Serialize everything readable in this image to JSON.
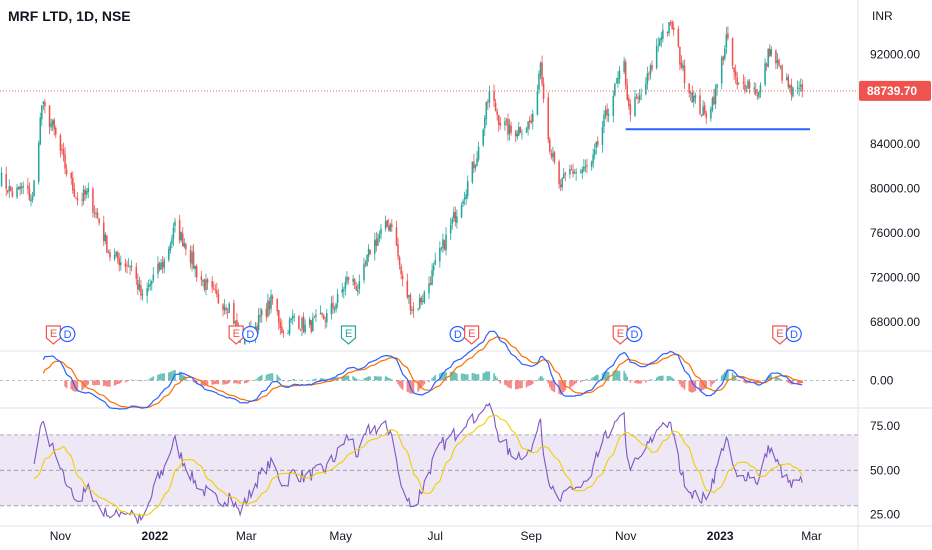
{
  "header": {
    "title": "MRF LTD, 1D, NSE"
  },
  "colors": {
    "up": "#26a69a",
    "down": "#ef5350",
    "macd": "#2962ff",
    "signal": "#ff6d00",
    "rsi": "#7e57c2",
    "rsi_ma": "#f0d000",
    "rsi_band": "#ede7f6",
    "support": "#2962ff",
    "price_line": "#ef5350"
  },
  "chart_data": {
    "type": "candlestick",
    "currency_label": "INR",
    "ylim": [
      65500,
      96000
    ],
    "y_ticks": [
      {
        "value": 92000,
        "label": "92000.00"
      },
      {
        "value": 88000,
        "label": "88000.00"
      },
      {
        "value": 84000,
        "label": "84000.00"
      },
      {
        "value": 80000,
        "label": "80000.00"
      },
      {
        "value": 76000,
        "label": "76000.00"
      },
      {
        "value": 72000,
        "label": "72000.00"
      },
      {
        "value": 68000,
        "label": "68000.00"
      }
    ],
    "x_ticks": [
      {
        "date": "2021-11-01",
        "label": "Nov",
        "bold": false
      },
      {
        "date": "2022-01-01",
        "label": "2022",
        "bold": true
      },
      {
        "date": "2022-03-01",
        "label": "Mar",
        "bold": false
      },
      {
        "date": "2022-05-01",
        "label": "May",
        "bold": false
      },
      {
        "date": "2022-07-01",
        "label": "Jul",
        "bold": false
      },
      {
        "date": "2022-09-01",
        "label": "Sep",
        "bold": false
      },
      {
        "date": "2022-11-01",
        "label": "Nov",
        "bold": false
      },
      {
        "date": "2023-01-01",
        "label": "2023",
        "bold": true
      },
      {
        "date": "2023-03-01",
        "label": "Mar",
        "bold": false
      }
    ],
    "x_range": [
      "2021-09-23",
      "2023-03-31"
    ],
    "last_price": {
      "value": 88739.7,
      "label": "88739.70"
    },
    "support_line": {
      "start": "2022-11-01",
      "end": "2023-02-28",
      "value": 85300
    },
    "price_path": [
      [
        "2021-09-23",
        81000
      ],
      [
        "2021-10-01",
        79500
      ],
      [
        "2021-10-08",
        80000
      ],
      [
        "2021-10-14",
        79000
      ],
      [
        "2021-10-20",
        87500
      ],
      [
        "2021-10-27",
        85500
      ],
      [
        "2021-11-05",
        81500
      ],
      [
        "2021-11-12",
        79000
      ],
      [
        "2021-11-19",
        79500
      ],
      [
        "2021-11-26",
        77000
      ],
      [
        "2021-12-03",
        74000
      ],
      [
        "2021-12-10",
        73500
      ],
      [
        "2021-12-17",
        73000
      ],
      [
        "2021-12-24",
        70000
      ],
      [
        "2021-12-31",
        72000
      ],
      [
        "2022-01-07",
        73500
      ],
      [
        "2022-01-14",
        76500
      ],
      [
        "2022-01-21",
        75000
      ],
      [
        "2022-01-28",
        72500
      ],
      [
        "2022-02-04",
        71000
      ],
      [
        "2022-02-11",
        70000
      ],
      [
        "2022-02-18",
        69500
      ],
      [
        "2022-02-25",
        66500
      ],
      [
        "2022-03-04",
        67000
      ],
      [
        "2022-03-11",
        68500
      ],
      [
        "2022-03-18",
        70000
      ],
      [
        "2022-03-25",
        67000
      ],
      [
        "2022-04-01",
        68500
      ],
      [
        "2022-04-08",
        67500
      ],
      [
        "2022-04-15",
        68000
      ],
      [
        "2022-04-22",
        68500
      ],
      [
        "2022-04-29",
        70000
      ],
      [
        "2022-05-06",
        72000
      ],
      [
        "2022-05-13",
        71000
      ],
      [
        "2022-05-20",
        74500
      ],
      [
        "2022-05-27",
        76000
      ],
      [
        "2022-06-03",
        77000
      ],
      [
        "2022-06-10",
        71500
      ],
      [
        "2022-06-17",
        69000
      ],
      [
        "2022-06-24",
        70500
      ],
      [
        "2022-07-01",
        73000
      ],
      [
        "2022-07-08",
        75500
      ],
      [
        "2022-07-15",
        78000
      ],
      [
        "2022-07-22",
        80500
      ],
      [
        "2022-07-29",
        83500
      ],
      [
        "2022-08-05",
        88500
      ],
      [
        "2022-08-12",
        86000
      ],
      [
        "2022-08-19",
        85000
      ],
      [
        "2022-08-26",
        85500
      ],
      [
        "2022-09-02",
        86000
      ],
      [
        "2022-09-07",
        91500
      ],
      [
        "2022-09-12",
        84500
      ],
      [
        "2022-09-19",
        80000
      ],
      [
        "2022-09-26",
        81500
      ],
      [
        "2022-10-03",
        81500
      ],
      [
        "2022-10-10",
        82000
      ],
      [
        "2022-10-17",
        85500
      ],
      [
        "2022-10-24",
        88500
      ],
      [
        "2022-10-31",
        91000
      ],
      [
        "2022-11-03",
        87000
      ],
      [
        "2022-11-10",
        88000
      ],
      [
        "2022-11-17",
        90500
      ],
      [
        "2022-11-24",
        94000
      ],
      [
        "2022-12-01",
        94500
      ],
      [
        "2022-12-08",
        90500
      ],
      [
        "2022-12-15",
        88000
      ],
      [
        "2022-12-22",
        86500
      ],
      [
        "2022-12-29",
        88500
      ],
      [
        "2023-01-05",
        93500
      ],
      [
        "2023-01-12",
        89000
      ],
      [
        "2023-01-19",
        89500
      ],
      [
        "2023-01-26",
        88500
      ],
      [
        "2023-02-02",
        92500
      ],
      [
        "2023-02-09",
        90500
      ],
      [
        "2023-02-16",
        88500
      ],
      [
        "2023-02-23",
        88740
      ]
    ],
    "markers": [
      {
        "date": "2021-11-01",
        "labels": [
          "E",
          "D"
        ]
      },
      {
        "date": "2022-02-27",
        "labels": [
          "E",
          "D"
        ]
      },
      {
        "date": "2022-05-06",
        "labels": [
          "E"
        ]
      },
      {
        "date": "2022-07-20",
        "labels": [
          "D",
          "E"
        ]
      },
      {
        "date": "2022-11-02",
        "labels": [
          "E",
          "D"
        ]
      },
      {
        "date": "2023-02-13",
        "labels": [
          "E",
          "D"
        ]
      }
    ],
    "macd": {
      "ylim": [
        -1800,
        2000
      ],
      "zero_label": "0.00",
      "ticks": [
        {
          "value": 0,
          "label": "0.00"
        }
      ]
    },
    "rsi": {
      "ylim": [
        22,
        84
      ],
      "band": [
        30,
        70
      ],
      "mid": 50,
      "ticks": [
        {
          "value": 75,
          "label": "75.00"
        },
        {
          "value": 50,
          "label": "50.00"
        },
        {
          "value": 25,
          "label": "25.00"
        }
      ]
    }
  }
}
